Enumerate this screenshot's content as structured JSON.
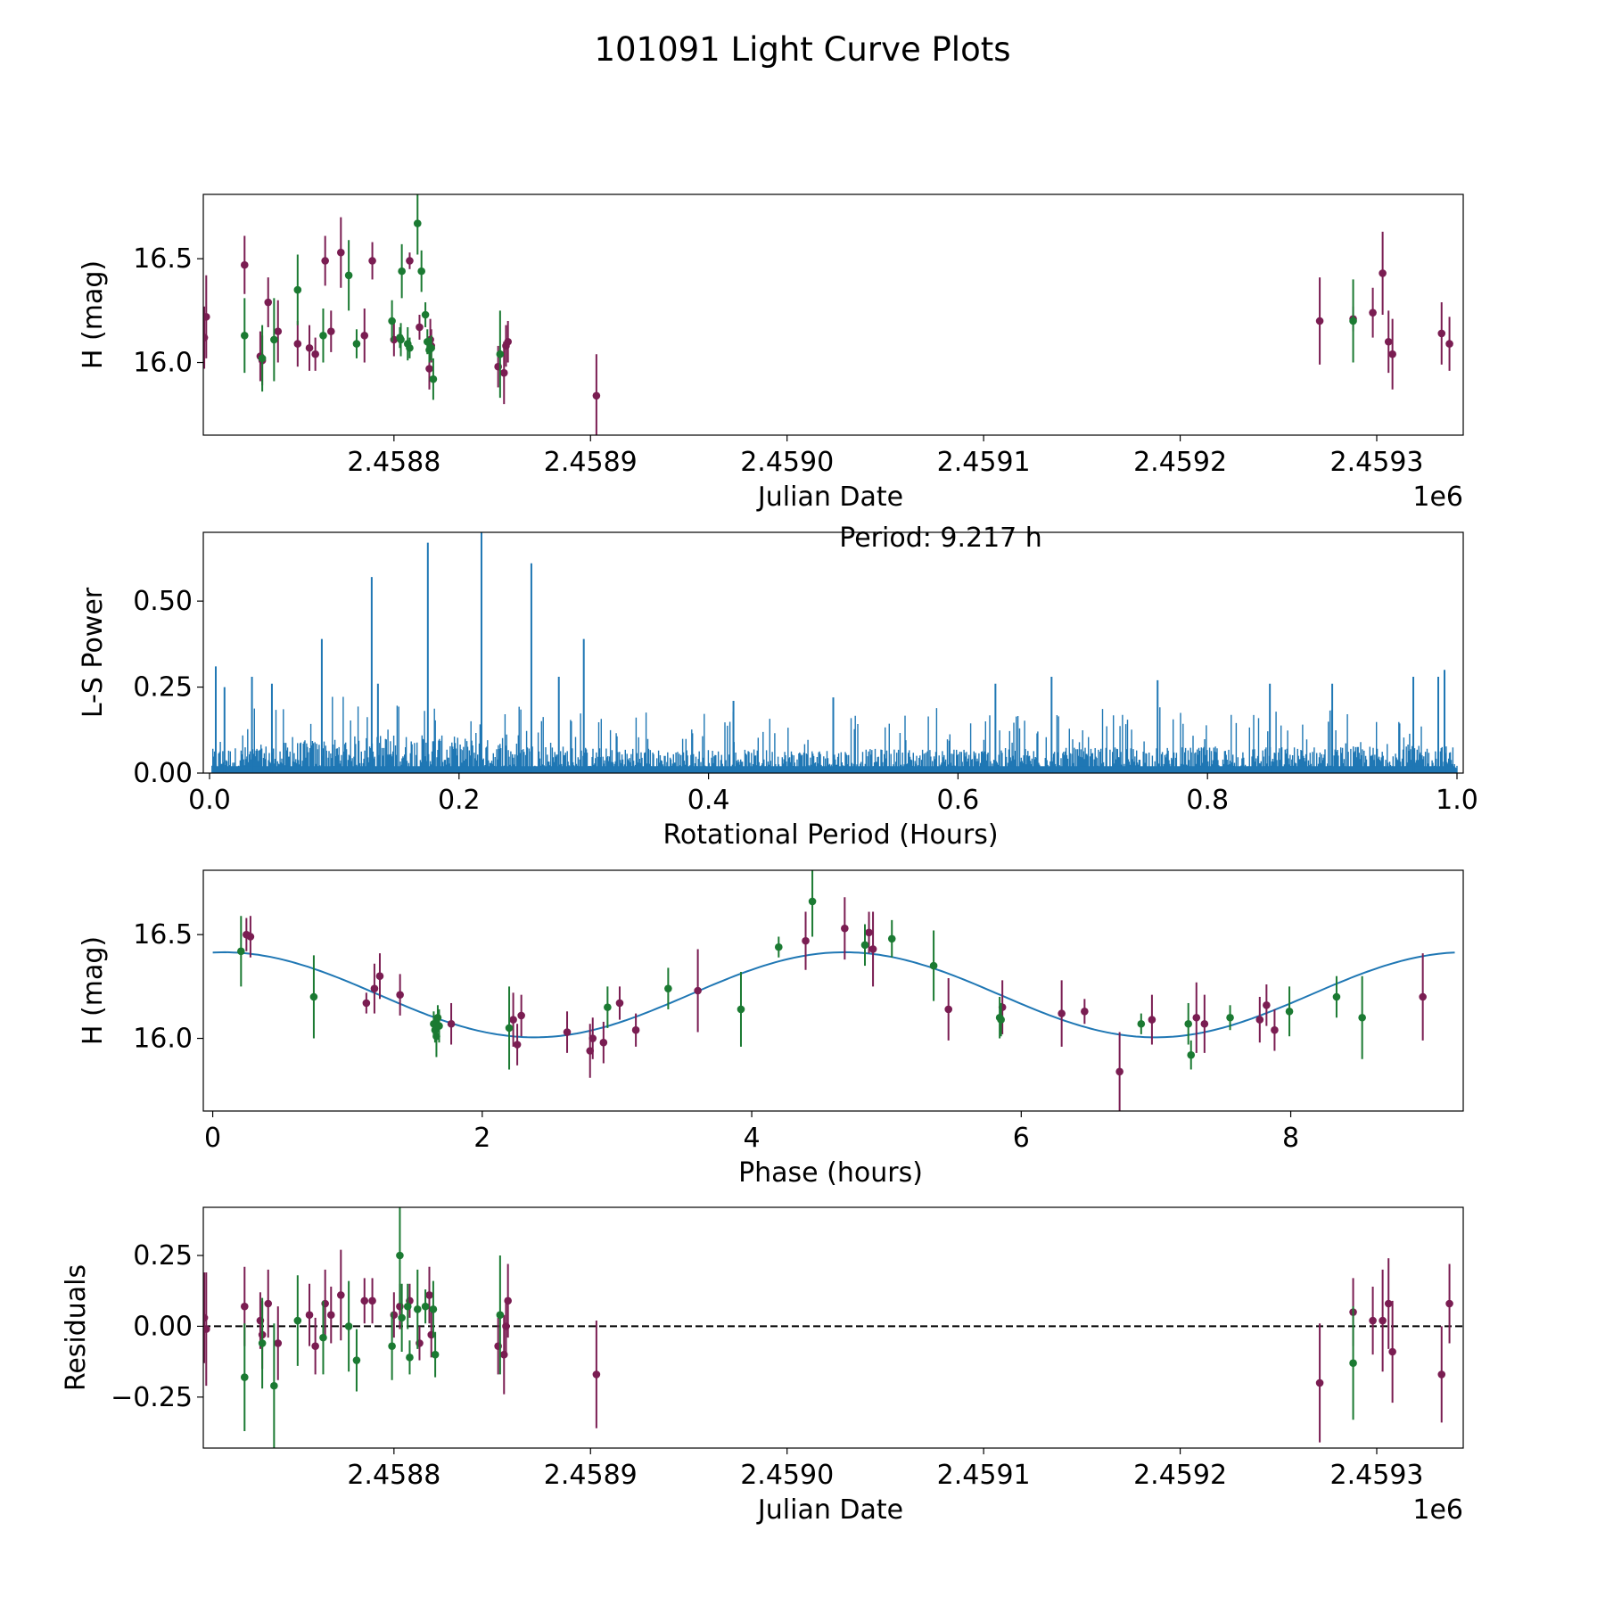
{
  "figure": {
    "title": "101091 Light Curve Plots"
  },
  "colors": {
    "filter_a": "#7a1d52",
    "filter_b": "#1b7a32",
    "model_line": "#1f77b4",
    "periodogram_line": "#1f77b4",
    "zero_line": "#000000"
  },
  "chart_data": [
    {
      "id": "lightcurve",
      "type": "scatter",
      "xlabel": "Julian Date",
      "ylabel": "H (mag)",
      "offset_label": "1e6",
      "xlim": [
        2458703,
        2459344
      ],
      "ylim": [
        15.65,
        16.81
      ],
      "xticks": [
        2458800,
        2458900,
        2459000,
        2459100,
        2459200,
        2459300
      ],
      "xtick_labels": [
        "2.4588",
        "2.4589",
        "2.4590",
        "2.4591",
        "2.4592",
        "2.4593"
      ],
      "yticks": [
        16.0,
        16.5
      ],
      "ytick_labels": [
        "16.0",
        "16.5"
      ],
      "series": [
        {
          "name": "filter A",
          "color_key": "filter_a",
          "points": [
            [
              2458703.5,
              16.12,
              0.15
            ],
            [
              2458704.5,
              16.22,
              0.2
            ],
            [
              2458724,
              16.47,
              0.14
            ],
            [
              2458732,
              16.03,
              0.12
            ],
            [
              2458733,
              16.01,
              0.12
            ],
            [
              2458736,
              16.29,
              0.12
            ],
            [
              2458741,
              16.15,
              0.15
            ],
            [
              2458751,
              16.09,
              0.11
            ],
            [
              2458757,
              16.07,
              0.11
            ],
            [
              2458760,
              16.04,
              0.08
            ],
            [
              2458765,
              16.49,
              0.12
            ],
            [
              2458768,
              16.15,
              0.1
            ],
            [
              2458773,
              16.53,
              0.17
            ],
            [
              2458785,
              16.13,
              0.13
            ],
            [
              2458789,
              16.49,
              0.09
            ],
            [
              2458800,
              16.11,
              0.08
            ],
            [
              2458808,
              16.49,
              0.04
            ],
            [
              2458813,
              16.17,
              0.06
            ],
            [
              2458818,
              15.97,
              0.1
            ],
            [
              2458818.5,
              16.11,
              0.1
            ],
            [
              2458819,
              16.08,
              0.08
            ],
            [
              2458853,
              15.98,
              0.1
            ],
            [
              2458856,
              15.95,
              0.15
            ],
            [
              2458857,
              16.08,
              0.1
            ],
            [
              2458858,
              16.1,
              0.1
            ],
            [
              2458903,
              15.84,
              0.2
            ],
            [
              2459271,
              16.2,
              0.21
            ],
            [
              2459288,
              16.21,
              0.06
            ],
            [
              2459298,
              16.24,
              0.12
            ],
            [
              2459303,
              16.43,
              0.2
            ],
            [
              2459306,
              16.1,
              0.15
            ],
            [
              2459308,
              16.04,
              0.17
            ],
            [
              2459333,
              16.14,
              0.15
            ],
            [
              2459337,
              16.09,
              0.13
            ]
          ]
        },
        {
          "name": "filter B",
          "color_key": "filter_b",
          "points": [
            [
              2458724,
              16.13,
              0.18
            ],
            [
              2458733,
              16.02,
              0.16
            ],
            [
              2458739,
              16.11,
              0.2
            ],
            [
              2458751,
              16.35,
              0.17
            ],
            [
              2458764,
              16.13,
              0.13
            ],
            [
              2458777,
              16.42,
              0.17
            ],
            [
              2458781,
              16.09,
              0.07
            ],
            [
              2458799,
              16.2,
              0.1
            ],
            [
              2458803,
              16.12,
              0.05
            ],
            [
              2458803.5,
              16.11,
              0.08
            ],
            [
              2458804,
              16.44,
              0.13
            ],
            [
              2458807,
              16.09,
              0.08
            ],
            [
              2458808,
              16.07,
              0.05
            ],
            [
              2458812,
              16.67,
              0.15
            ],
            [
              2458814,
              16.44,
              0.1
            ],
            [
              2458816,
              16.23,
              0.06
            ],
            [
              2458817,
              16.1,
              0.06
            ],
            [
              2458818,
              16.06,
              0.06
            ],
            [
              2458819,
              16.07,
              0.06
            ],
            [
              2458820,
              15.92,
              0.1
            ],
            [
              2458854,
              16.04,
              0.21
            ],
            [
              2459288,
              16.2,
              0.2
            ]
          ]
        }
      ]
    },
    {
      "id": "periodogram",
      "type": "line",
      "xlabel": "Rotational Period (Hours)",
      "ylabel": "L-S Power",
      "annotation": "Period: 9.217 h",
      "xlim": [
        -0.005,
        1.005
      ],
      "ylim": [
        0.0,
        0.7
      ],
      "xticks": [
        0.0,
        0.2,
        0.4,
        0.6,
        0.8,
        1.0
      ],
      "xtick_labels": [
        "0.0",
        "0.2",
        "0.4",
        "0.6",
        "0.8",
        "1.0"
      ],
      "yticks": [
        0.0,
        0.25,
        0.5
      ],
      "ytick_labels": [
        "0.00",
        "0.25",
        "0.50"
      ],
      "peaks": [
        [
          0.005,
          0.31
        ],
        [
          0.012,
          0.25
        ],
        [
          0.034,
          0.28
        ],
        [
          0.05,
          0.26
        ],
        [
          0.09,
          0.39
        ],
        [
          0.13,
          0.57
        ],
        [
          0.135,
          0.26
        ],
        [
          0.175,
          0.67
        ],
        [
          0.218,
          0.71
        ],
        [
          0.258,
          0.61
        ],
        [
          0.3,
          0.39
        ],
        [
          0.28,
          0.28
        ],
        [
          0.42,
          0.21
        ],
        [
          0.5,
          0.22
        ],
        [
          0.63,
          0.26
        ],
        [
          0.675,
          0.28
        ],
        [
          0.76,
          0.27
        ],
        [
          0.85,
          0.26
        ],
        [
          0.9,
          0.26
        ],
        [
          0.965,
          0.28
        ],
        [
          0.99,
          0.3
        ],
        [
          0.985,
          0.28
        ]
      ]
    },
    {
      "id": "phased",
      "type": "scatter",
      "xlabel": "Phase (hours)",
      "ylabel": "H (mag)",
      "xlim": [
        -0.07,
        9.28
      ],
      "ylim": [
        15.65,
        16.81
      ],
      "xticks": [
        0,
        2,
        4,
        6,
        8
      ],
      "xtick_labels": [
        "0",
        "2",
        "4",
        "6",
        "8"
      ],
      "yticks": [
        16.0,
        16.5
      ],
      "ytick_labels": [
        "16.0",
        "16.5"
      ],
      "model": {
        "period_hours": 9.217,
        "mean": 16.21,
        "amplitude": 0.205,
        "peak_phase": 4.69,
        "harmonics": 2
      },
      "series": [
        {
          "name": "filter A",
          "color_key": "filter_a",
          "points": [
            [
              0.25,
              16.5,
              0.08
            ],
            [
              0.28,
              16.49,
              0.1
            ],
            [
              1.14,
              16.17,
              0.05
            ],
            [
              1.2,
              16.24,
              0.12
            ],
            [
              1.24,
              16.3,
              0.11
            ],
            [
              1.39,
              16.21,
              0.1
            ],
            [
              1.77,
              16.07,
              0.1
            ],
            [
              2.23,
              16.09,
              0.13
            ],
            [
              2.26,
              15.97,
              0.1
            ],
            [
              2.29,
              16.11,
              0.1
            ],
            [
              2.63,
              16.03,
              0.1
            ],
            [
              2.8,
              15.94,
              0.13
            ],
            [
              2.82,
              16.0,
              0.1
            ],
            [
              2.9,
              15.98,
              0.1
            ],
            [
              3.02,
              16.17,
              0.08
            ],
            [
              3.14,
              16.04,
              0.08
            ],
            [
              3.6,
              16.23,
              0.2
            ],
            [
              4.4,
              16.47,
              0.14
            ],
            [
              4.69,
              16.53,
              0.15
            ],
            [
              4.87,
              16.51,
              0.1
            ],
            [
              4.9,
              16.43,
              0.18
            ],
            [
              5.46,
              16.14,
              0.15
            ],
            [
              5.86,
              16.15,
              0.13
            ],
            [
              6.3,
              16.12,
              0.16
            ],
            [
              6.47,
              16.13,
              0.06
            ],
            [
              6.73,
              15.84,
              0.19
            ],
            [
              6.97,
              16.09,
              0.12
            ],
            [
              7.3,
              16.1,
              0.17
            ],
            [
              7.36,
              16.07,
              0.14
            ],
            [
              7.77,
              16.09,
              0.11
            ],
            [
              7.82,
              16.16,
              0.1
            ],
            [
              7.88,
              16.04,
              0.1
            ],
            [
              8.98,
              16.2,
              0.21
            ]
          ]
        },
        {
          "name": "filter B",
          "color_key": "filter_b",
          "points": [
            [
              0.21,
              16.42,
              0.17
            ],
            [
              0.75,
              16.2,
              0.2
            ],
            [
              1.64,
              16.07,
              0.06
            ],
            [
              1.65,
              16.04,
              0.06
            ],
            [
              1.66,
              16.01,
              0.1
            ],
            [
              1.67,
              16.1,
              0.06
            ],
            [
              1.68,
              16.06,
              0.08
            ],
            [
              2.2,
              16.05,
              0.2
            ],
            [
              2.93,
              16.15,
              0.1
            ],
            [
              3.38,
              16.24,
              0.1
            ],
            [
              3.92,
              16.14,
              0.18
            ],
            [
              4.2,
              16.44,
              0.05
            ],
            [
              4.45,
              16.66,
              0.17
            ],
            [
              4.84,
              16.45,
              0.1
            ],
            [
              5.04,
              16.48,
              0.09
            ],
            [
              5.35,
              16.35,
              0.17
            ],
            [
              5.84,
              16.1,
              0.1
            ],
            [
              5.85,
              16.09,
              0.08
            ],
            [
              6.89,
              16.07,
              0.05
            ],
            [
              7.24,
              16.07,
              0.1
            ],
            [
              7.26,
              15.92,
              0.07
            ],
            [
              7.55,
              16.1,
              0.06
            ],
            [
              7.99,
              16.13,
              0.12
            ],
            [
              8.34,
              16.2,
              0.1
            ],
            [
              8.53,
              16.1,
              0.2
            ]
          ]
        }
      ]
    },
    {
      "id": "residuals",
      "type": "scatter",
      "xlabel": "Julian Date",
      "ylabel": "Residuals",
      "offset_label": "1e6",
      "xlim": [
        2458703,
        2459344
      ],
      "ylim": [
        -0.43,
        0.42
      ],
      "xticks": [
        2458800,
        2458900,
        2459000,
        2459100,
        2459200,
        2459300
      ],
      "xtick_labels": [
        "2.4588",
        "2.4589",
        "2.4590",
        "2.4591",
        "2.4592",
        "2.4593"
      ],
      "yticks": [
        -0.25,
        0.0,
        0.25
      ],
      "ytick_labels": [
        "−0.25",
        "0.00",
        "0.25"
      ],
      "zero_line": 0.0,
      "series": [
        {
          "name": "filter A",
          "color_key": "filter_a",
          "points": [
            [
              2458703.5,
              0.03,
              0.16
            ],
            [
              2458704.5,
              -0.01,
              0.2
            ],
            [
              2458724,
              0.07,
              0.14
            ],
            [
              2458732,
              0.02,
              0.1
            ],
            [
              2458733,
              -0.03,
              0.12
            ],
            [
              2458736,
              0.08,
              0.12
            ],
            [
              2458741,
              -0.06,
              0.13
            ],
            [
              2458757,
              0.04,
              0.11
            ],
            [
              2458760,
              -0.07,
              0.1
            ],
            [
              2458765,
              0.08,
              0.12
            ],
            [
              2458768,
              0.04,
              0.1
            ],
            [
              2458773,
              0.11,
              0.16
            ],
            [
              2458785,
              0.09,
              0.08
            ],
            [
              2458789,
              0.09,
              0.08
            ],
            [
              2458800,
              0.04,
              0.08
            ],
            [
              2458803,
              0.07,
              0.08
            ],
            [
              2458808,
              0.09,
              0.06
            ],
            [
              2458813,
              -0.06,
              0.06
            ],
            [
              2458818,
              0.11,
              0.1
            ],
            [
              2458819,
              -0.03,
              0.08
            ],
            [
              2458853,
              -0.07,
              0.1
            ],
            [
              2458856,
              -0.1,
              0.14
            ],
            [
              2458857,
              0.0,
              0.1
            ],
            [
              2458858,
              0.09,
              0.13
            ],
            [
              2458903,
              -0.17,
              0.19
            ],
            [
              2459271,
              -0.2,
              0.21
            ],
            [
              2459288,
              0.05,
              0.12
            ],
            [
              2459298,
              0.02,
              0.12
            ],
            [
              2459303,
              0.02,
              0.18
            ],
            [
              2459306,
              0.08,
              0.16
            ],
            [
              2459308,
              -0.09,
              0.18
            ],
            [
              2459333,
              -0.17,
              0.17
            ],
            [
              2459337,
              0.08,
              0.14
            ]
          ]
        },
        {
          "name": "filter B",
          "color_key": "filter_b",
          "points": [
            [
              2458724,
              -0.18,
              0.19
            ],
            [
              2458733,
              -0.06,
              0.16
            ],
            [
              2458739,
              -0.21,
              0.22
            ],
            [
              2458751,
              0.02,
              0.16
            ],
            [
              2458764,
              -0.04,
              0.13
            ],
            [
              2458777,
              0.0,
              0.16
            ],
            [
              2458781,
              -0.12,
              0.11
            ],
            [
              2458799,
              -0.07,
              0.12
            ],
            [
              2458803,
              0.25,
              0.17
            ],
            [
              2458804,
              0.03,
              0.12
            ],
            [
              2458807,
              0.07,
              0.08
            ],
            [
              2458808,
              -0.11,
              0.06
            ],
            [
              2458812,
              0.06,
              0.14
            ],
            [
              2458816,
              0.07,
              0.06
            ],
            [
              2458820,
              0.06,
              0.1
            ],
            [
              2458821,
              -0.1,
              0.08
            ],
            [
              2458854,
              0.04,
              0.21
            ],
            [
              2459288,
              -0.13,
              0.2
            ]
          ]
        }
      ]
    }
  ]
}
